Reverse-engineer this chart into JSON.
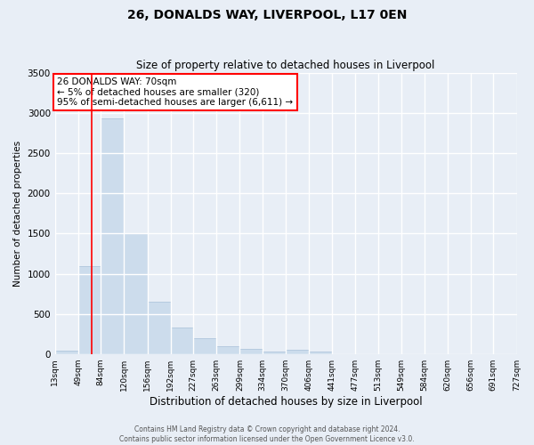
{
  "title": "26, DONALDS WAY, LIVERPOOL, L17 0EN",
  "subtitle": "Size of property relative to detached houses in Liverpool",
  "xlabel": "Distribution of detached houses by size in Liverpool",
  "ylabel": "Number of detached properties",
  "bar_color": "#ccdcec",
  "bar_edge_color": "#a8c0d8",
  "background_color": "#e8eef6",
  "plot_bg_color": "#e8eef6",
  "grid_color": "#ffffff",
  "red_line_x": 70,
  "annotation_title": "26 DONALDS WAY: 70sqm",
  "annotation_line1": "← 5% of detached houses are smaller (320)",
  "annotation_line2": "95% of semi-detached houses are larger (6,611) →",
  "bin_edges": [
    13,
    49,
    84,
    120,
    156,
    192,
    227,
    263,
    299,
    334,
    370,
    406,
    441,
    477,
    513,
    549,
    584,
    620,
    656,
    691,
    727
  ],
  "bin_counts": [
    45,
    1100,
    2930,
    1510,
    650,
    330,
    195,
    100,
    60,
    25,
    50,
    25,
    0,
    0,
    0,
    0,
    0,
    0,
    0,
    0
  ],
  "ylim": [
    0,
    3500
  ],
  "yticks": [
    0,
    500,
    1000,
    1500,
    2000,
    2500,
    3000,
    3500
  ],
  "footer_line1": "Contains HM Land Registry data © Crown copyright and database right 2024.",
  "footer_line2": "Contains public sector information licensed under the Open Government Licence v3.0."
}
